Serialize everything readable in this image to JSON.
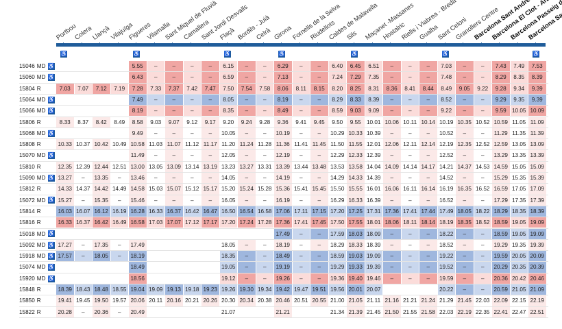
{
  "stations": [
    "Portbou",
    "Colera",
    "Llançà",
    "Vilajuïga",
    "Figueres",
    "Vilamalla",
    "Sant Miquel de Fluvià",
    "Camallera",
    "Sant Jordi Desvalls",
    "Flaçà",
    "Bordils - Juià",
    "Celrà",
    "Girona",
    "Fornells de la Selva",
    "Riudellots",
    "Caldes de Malavella",
    "Sils",
    "Maçanet -Massanes",
    "Hostalric",
    "Riells i Viabrea - Breda",
    "Gualba",
    "Sant Celoni",
    "Granollers Centre",
    "Barcelona Sant Andreu",
    "Barcelona El Clot - Aragó",
    "Barcelona Passeig de Gràcia",
    "Barcelona Sants"
  ],
  "bold_stations": [
    23,
    24,
    25,
    26
  ],
  "accessible_stations": [
    0,
    4,
    9,
    12,
    16,
    21,
    26
  ],
  "accessible_glyph": "♿",
  "colors": {
    "red_dark": "#f0a6a3",
    "red_light": "#fbdcda",
    "blue_dark": "#9fb7de",
    "blue_light": "#c9d7ee",
    "line": "#1f5c9a",
    "dash": "–"
  },
  "rows": [
    {
      "train": "15046",
      "type": "MD",
      "access": true,
      "tint": "red",
      "cells": [
        "",
        "",
        "",
        "",
        "5.55",
        "–",
        "–",
        "–",
        "–",
        "6.15",
        "–",
        "–",
        "6.29",
        "–",
        "–",
        "6.40",
        "6.45",
        "6.51",
        "–",
        "–",
        "–",
        "7.03",
        "–",
        "–",
        "7.43",
        "7.49",
        "7.53"
      ]
    },
    {
      "train": "15060",
      "type": "MD",
      "access": true,
      "tint": "red",
      "cells": [
        "",
        "",
        "",
        "",
        "6.43",
        "–",
        "–",
        "–",
        "–",
        "6.59",
        "–",
        "–",
        "7.13",
        "–",
        "–",
        "7.24",
        "7.29",
        "7.35",
        "–",
        "–",
        "–",
        "7.48",
        "–",
        "–",
        "8.29",
        "8.35",
        "8.39"
      ]
    },
    {
      "train": "15804",
      "type": "R",
      "access": false,
      "tint": "red",
      "cells": [
        "7.03",
        "7.07",
        "7.12",
        "7.19",
        "7.28",
        "7.33",
        "7.37",
        "7.42",
        "7.47",
        "7.50",
        "7.54",
        "7.58",
        "8.06",
        "8.11",
        "8.15",
        "8.20",
        "8.25",
        "8.31",
        "8.36",
        "8.41",
        "8.44",
        "8.49",
        "9.05",
        "9.22",
        "9.28",
        "9.34",
        "9.39"
      ]
    },
    {
      "train": "15064",
      "type": "MD",
      "access": true,
      "tint": "blue",
      "cells": [
        "",
        "",
        "",
        "",
        "7.49",
        "–",
        "–",
        "–",
        "–",
        "8.05",
        "–",
        "–",
        "8.19",
        "–",
        "–",
        "8.29",
        "8.33",
        "8.39",
        "–",
        "–",
        "–",
        "8.52",
        "–",
        "–",
        "9.29",
        "9.35",
        "9.39"
      ]
    },
    {
      "train": "15066",
      "type": "MD",
      "access": true,
      "tint": "red",
      "cells": [
        "",
        "",
        "",
        "",
        "8.19",
        "–",
        "–",
        "–",
        "–",
        "8.35",
        "–",
        "–",
        "8.49",
        "–",
        "–",
        "8.59",
        "9.03",
        "9.09",
        "–",
        "–",
        "–",
        "9.22",
        "–",
        "–",
        "9.59",
        "10.05",
        "10.09"
      ]
    },
    {
      "train": "15806",
      "type": "R",
      "access": false,
      "tint": "none",
      "cells": [
        "8.33",
        "8.37",
        "8.42",
        "8.49",
        "8.58",
        "9.03",
        "9.07",
        "9.12",
        "9.17",
        "9.20",
        "9.24",
        "9.28",
        "9.36",
        "9.41",
        "9.45",
        "9.50",
        "9.55",
        "10.01",
        "10.06",
        "10.11",
        "10.14",
        "10.19",
        "10.35",
        "10.52",
        "10.59",
        "11.05",
        "11.09"
      ]
    },
    {
      "train": "15068",
      "type": "MD",
      "access": true,
      "tint": "none",
      "cells": [
        "",
        "",
        "",
        "",
        "9.49",
        "–",
        "–",
        "–",
        "–",
        "10.05",
        "–",
        "–",
        "10.19",
        "–",
        "–",
        "10.29",
        "10.33",
        "10.39",
        "–",
        "–",
        "–",
        "10.52",
        "–",
        "–",
        "11.29",
        "11.35",
        "11.39"
      ]
    },
    {
      "train": "15808",
      "type": "R",
      "access": false,
      "tint": "none",
      "cells": [
        "10.33",
        "10.37",
        "10.42",
        "10.49",
        "10.58",
        "11.03",
        "11.07",
        "11.12",
        "11.17",
        "11.20",
        "11.24",
        "11.28",
        "11.36",
        "11.41",
        "11.45",
        "11.50",
        "11.55",
        "12.01",
        "12.06",
        "12.11",
        "12.14",
        "12.19",
        "12.35",
        "12.52",
        "12.59",
        "13.05",
        "13.09"
      ]
    },
    {
      "train": "15070",
      "type": "MD",
      "access": true,
      "tint": "none",
      "cells": [
        "",
        "",
        "",
        "",
        "11.49",
        "–",
        "–",
        "–",
        "–",
        "12.05",
        "–",
        "–",
        "12.19",
        "–",
        "–",
        "12.29",
        "12.33",
        "12.39",
        "–",
        "–",
        "–",
        "12.52",
        "–",
        "–",
        "13.29",
        "13.35",
        "13.39"
      ]
    },
    {
      "train": "15810",
      "type": "R",
      "access": false,
      "tint": "none",
      "cells": [
        "12.35",
        "12.39",
        "12.44",
        "12.51",
        "13.00",
        "13.05",
        "13.09",
        "13.14",
        "13.19",
        "13.23",
        "13.27",
        "13.31",
        "13.39",
        "13.44",
        "13.48",
        "13.53",
        "13.58",
        "14.04",
        "14.09",
        "14.14",
        "14.17",
        "14.21",
        "14.37",
        "14.53",
        "14.59",
        "15.05",
        "15.09"
      ]
    },
    {
      "train": "15090",
      "type": "MD",
      "access": true,
      "tint": "none",
      "cells": [
        "13.27",
        "–",
        "13.35",
        "–",
        "13.46",
        "–",
        "–",
        "–",
        "–",
        "14.05",
        "–",
        "–",
        "14.19",
        "–",
        "–",
        "14.29",
        "14.33",
        "14.39",
        "–",
        "–",
        "–",
        "14.52",
        "–",
        "–",
        "15.29",
        "15.35",
        "15.39"
      ]
    },
    {
      "train": "15812",
      "type": "R",
      "access": false,
      "tint": "none",
      "cells": [
        "14.33",
        "14.37",
        "14.42",
        "14.49",
        "14.58",
        "15.03",
        "15.07",
        "15.12",
        "15.17",
        "15.20",
        "15.24",
        "15.28",
        "15.36",
        "15.41",
        "15.45",
        "15.50",
        "15.55",
        "16.01",
        "16.06",
        "16.11",
        "16.14",
        "16.19",
        "16.35",
        "16.52",
        "16.59",
        "17.05",
        "17.09"
      ]
    },
    {
      "train": "15072",
      "type": "MD",
      "access": true,
      "tint": "none",
      "cells": [
        "15.27",
        "–",
        "15.35",
        "–",
        "15.46",
        "–",
        "–",
        "–",
        "–",
        "16.05",
        "–",
        "–",
        "16.19",
        "–",
        "–",
        "16.29",
        "16.33",
        "16.39",
        "–",
        "–",
        "–",
        "16.52",
        "–",
        "–",
        "17.29",
        "17.35",
        "17.39"
      ]
    },
    {
      "train": "15814",
      "type": "R",
      "access": false,
      "tint": "blue",
      "cells": [
        "16.03",
        "16.07",
        "16.12",
        "16.19",
        "16.28",
        "16.33",
        "16.37",
        "16.42",
        "16.47",
        "16.50",
        "16.54",
        "16.58",
        "17.06",
        "17.11",
        "17.15",
        "17.20",
        "17.25",
        "17.31",
        "17.36",
        "17.41",
        "17.44",
        "17.49",
        "18.05",
        "18.22",
        "18.29",
        "18.35",
        "18.39"
      ]
    },
    {
      "train": "15816",
      "type": "R",
      "access": false,
      "tint": "red",
      "cells": [
        "16.33",
        "16.37",
        "16.42",
        "16.49",
        "16.58",
        "17.03",
        "17.07",
        "17.12",
        "17.17",
        "17.20",
        "17.24",
        "17.28",
        "17.36",
        "17.41",
        "17.45",
        "17.50",
        "17.55",
        "18.01",
        "18.06",
        "18.11",
        "18.14",
        "18.19",
        "18.35",
        "18.52",
        "18.59",
        "19.05",
        "19.09"
      ]
    },
    {
      "train": "15018",
      "type": "MD",
      "access": true,
      "tint": "blue",
      "cells": [
        "",
        "",
        "",
        "",
        "",
        "",
        "",
        "",
        "",
        "",
        "",
        "",
        "17.49",
        "–",
        "–",
        "17.59",
        "18.03",
        "18.09",
        "–",
        "–",
        "–",
        "18.22",
        "–",
        "–",
        "18.59",
        "19.05",
        "19.09"
      ]
    },
    {
      "train": "15092",
      "type": "MD",
      "access": true,
      "tint": "none",
      "cells": [
        "17.27",
        "–",
        "17.35",
        "–",
        "17.49",
        "",
        "",
        "",
        "",
        "18.05",
        "–",
        "–",
        "18.19",
        "–",
        "–",
        "18.29",
        "18.33",
        "18.39",
        "–",
        "–",
        "–",
        "18.52",
        "–",
        "–",
        "19.29",
        "19.35",
        "19.39"
      ]
    },
    {
      "train": "15918",
      "type": "MD",
      "access": true,
      "tint": "blue",
      "cells": [
        "17.57",
        "–",
        "18.05",
        "–",
        "18.19",
        "",
        "",
        "",
        "",
        "18.35",
        "–",
        "–",
        "18.49",
        "–",
        "–",
        "18.59",
        "19.03",
        "19.09",
        "–",
        "–",
        "–",
        "19.22",
        "–",
        "–",
        "19.59",
        "20.05",
        "20.09"
      ]
    },
    {
      "train": "15074",
      "type": "MD",
      "access": true,
      "tint": "blue",
      "cells": [
        "",
        "",
        "",
        "",
        "18.49",
        "",
        "",
        "",
        "",
        "19.05",
        "–",
        "–",
        "19.19",
        "–",
        "–",
        "19.29",
        "19.33",
        "19.39",
        "–",
        "–",
        "–",
        "19.52",
        "–",
        "–",
        "20.29",
        "20.35",
        "20.39"
      ]
    },
    {
      "train": "15920",
      "type": "MD",
      "access": true,
      "tint": "red",
      "cells": [
        "",
        "",
        "",
        "",
        "18.56",
        "",
        "",
        "",
        "",
        "19.12",
        "–",
        "–",
        "19.26",
        "–",
        "–",
        "19.36",
        "19.40",
        "19.46",
        "–",
        "–",
        "–",
        "19.59",
        "–",
        "–",
        "20.36",
        "20.42",
        "20.46"
      ]
    },
    {
      "train": "15848",
      "type": "R",
      "access": false,
      "tint": "blue",
      "cells": [
        "18.39",
        "18.43",
        "18.48",
        "18.55",
        "19.04",
        "19.09",
        "19.13",
        "19.18",
        "19.23",
        "19.26",
        "19.30",
        "19.34",
        "19.42",
        "19.47",
        "19.51",
        "19.56",
        "20.01",
        "20.07",
        "",
        "",
        "",
        "20.22",
        "–",
        "–",
        "20.59",
        "21.05",
        "21.09"
      ]
    },
    {
      "train": "15850",
      "type": "R",
      "access": false,
      "tint": "none",
      "cells": [
        "19.41",
        "19.45",
        "19.50",
        "19.57",
        "20.06",
        "20.11",
        "20.16",
        "20.21",
        "20.26",
        "20.30",
        "20.34",
        "20.38",
        "20.46",
        "20.51",
        "20.55",
        "21.00",
        "21.05",
        "21.11",
        "21.16",
        "21.21",
        "21.24",
        "21.29",
        "21.45",
        "22.03",
        "22.09",
        "22.15",
        "22.19"
      ]
    },
    {
      "train": "15822",
      "type": "R",
      "access": false,
      "tint": "none",
      "cells": [
        "20.28",
        "–",
        "20.36",
        "–",
        "20.49",
        "",
        "",
        "",
        "",
        "21.07",
        "",
        "",
        "21.21",
        "",
        "",
        "21.34",
        "21.39",
        "21.45",
        "21.50",
        "21.55",
        "21.58",
        "22.03",
        "22.19",
        "22.35",
        "22.41",
        "22.47",
        "22.51"
      ]
    }
  ]
}
